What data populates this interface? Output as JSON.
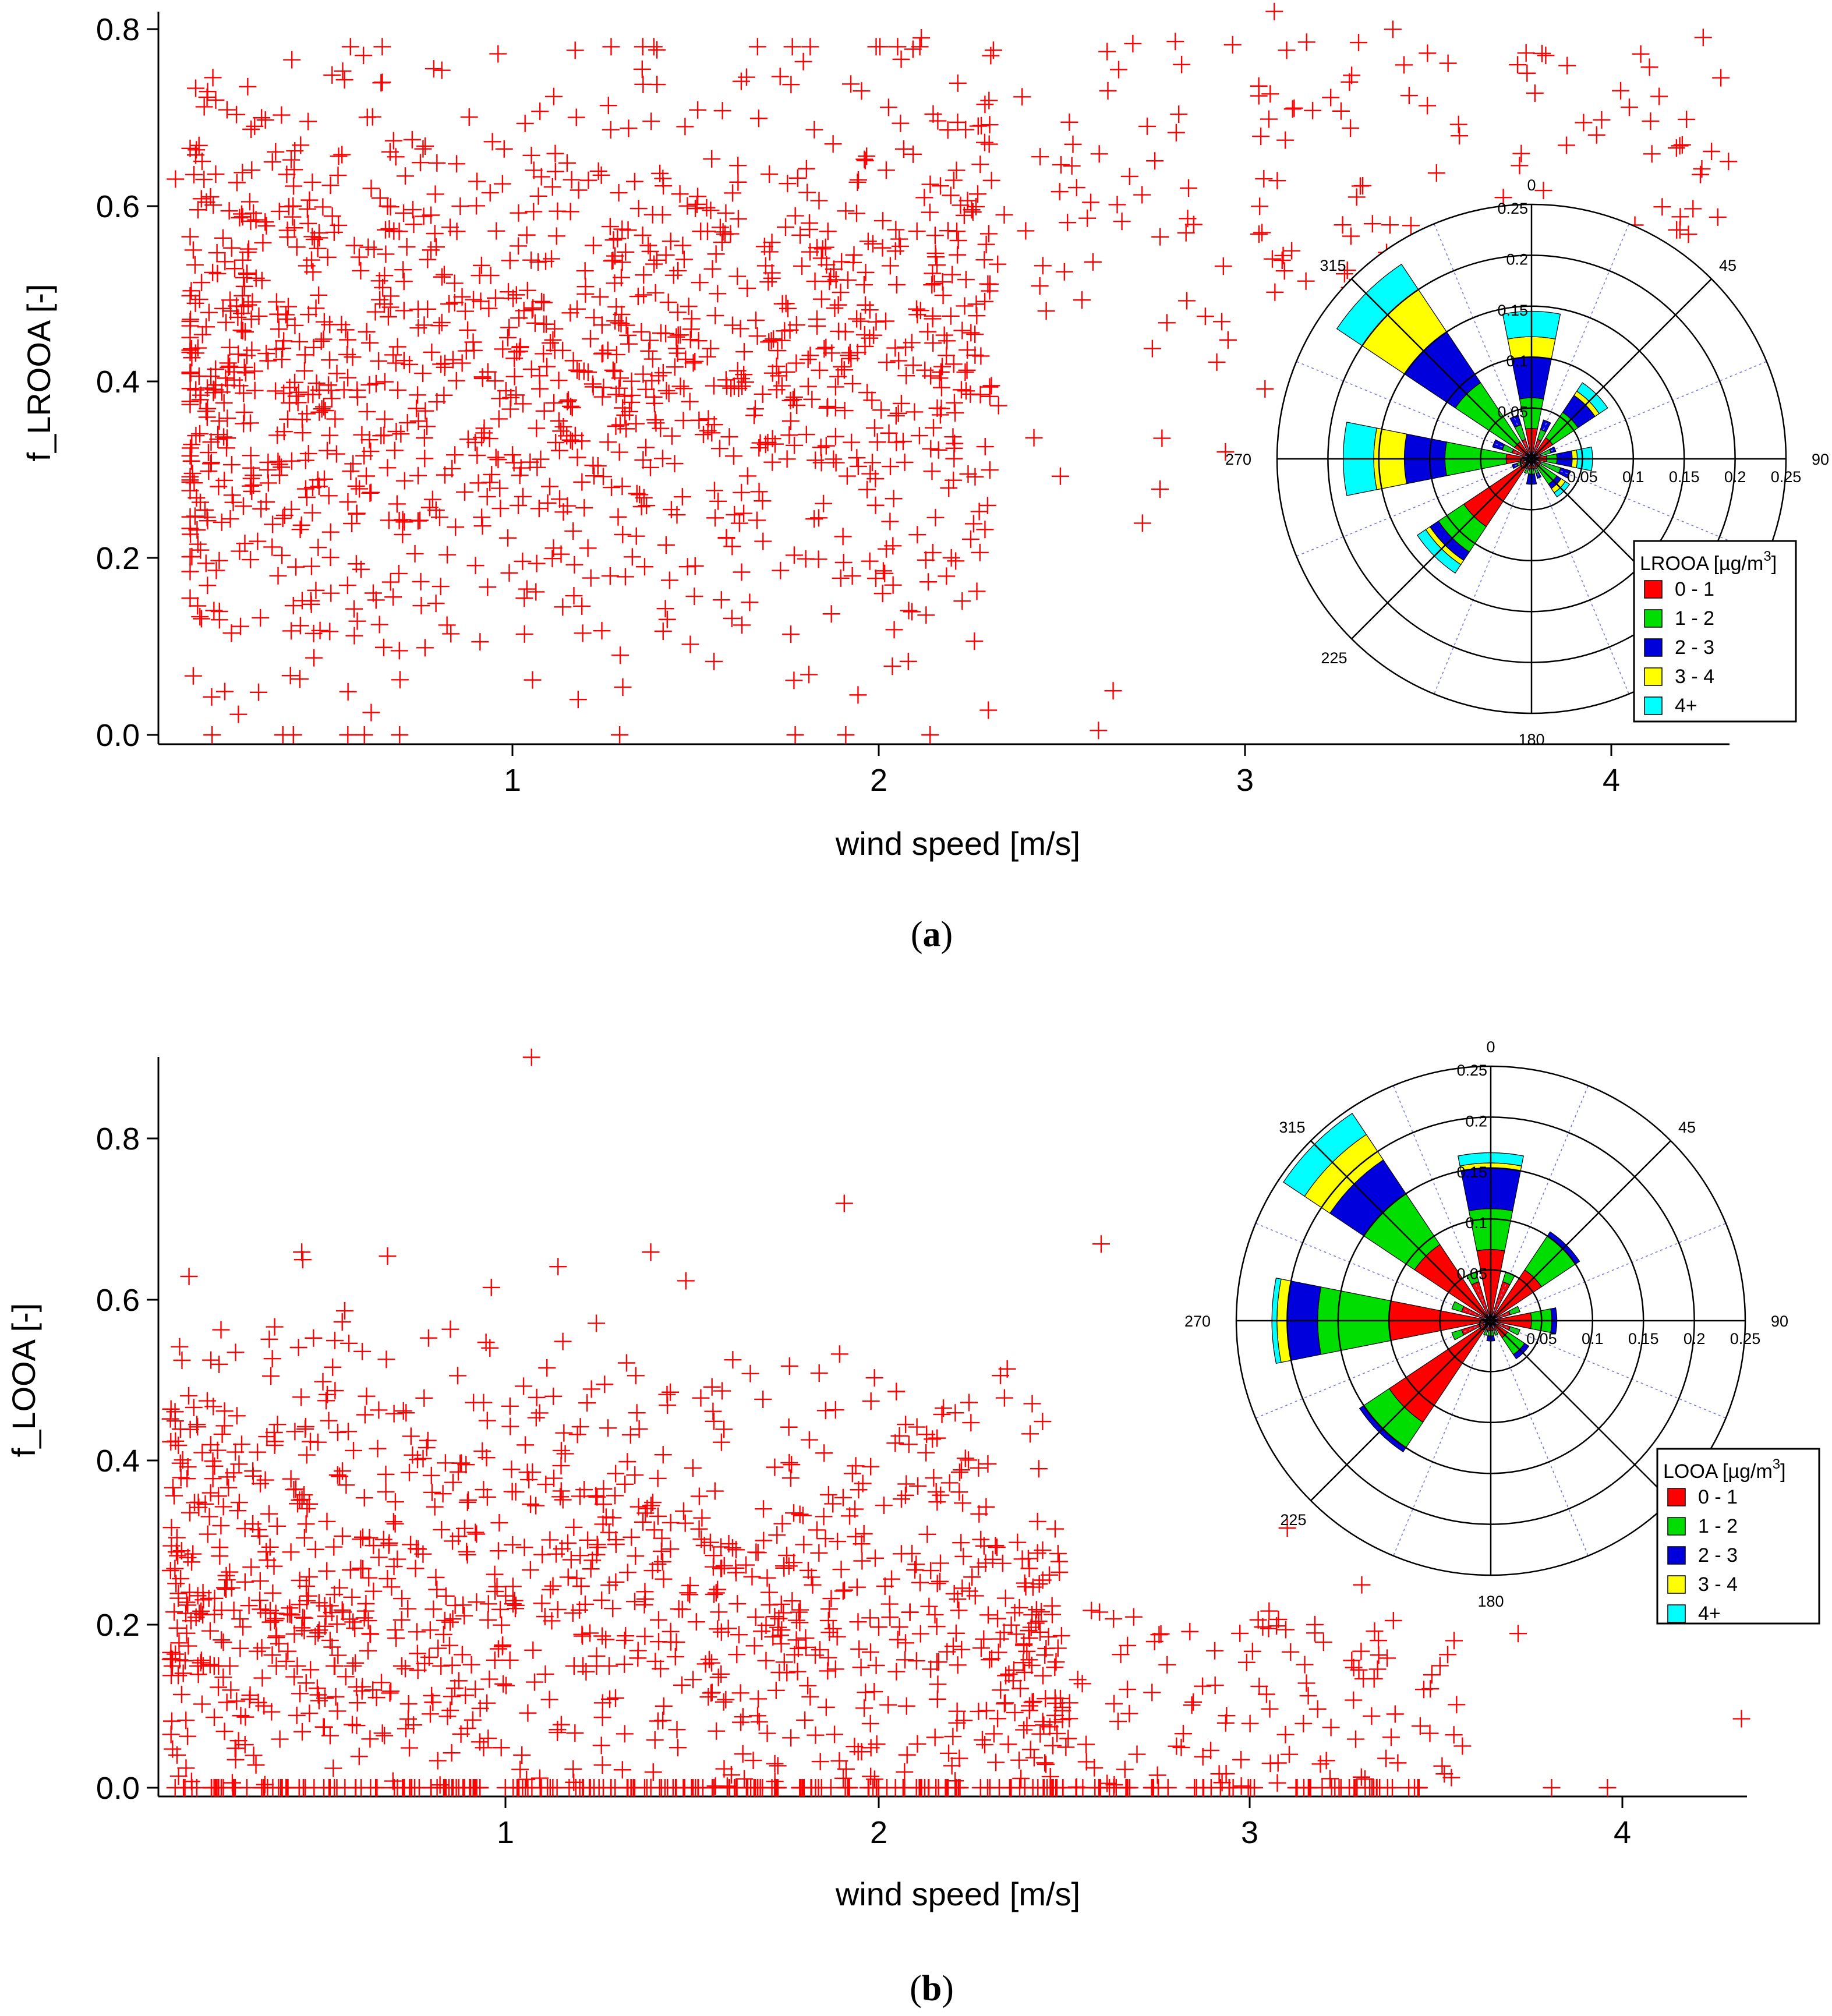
{
  "chart_data": [
    {
      "panel": "a",
      "panel_label": "a",
      "type": "scatter",
      "xlabel": "wind speed [m/s]",
      "ylabel": "f_LROOA [-]",
      "xlim": [
        0.1,
        4.35
      ],
      "ylim": [
        -0.01,
        0.82
      ],
      "xticks": [
        "1",
        "2",
        "3",
        "4"
      ],
      "yticks": [
        "0.0",
        "0.2",
        "0.4",
        "0.6",
        "0.8"
      ],
      "marker_color": "#ff0000",
      "marker": "+",
      "seed": 11,
      "n_points": 1500,
      "density_model": "broad cloud 0.1-2.3 m/s centred near 1 m/s; high-wind points 2.2-4.3 m/s clustered at f 0.5-0.8",
      "highlight_points": [
        {
          "x": 3.08,
          "y": 0.82
        },
        {
          "x": 4.32,
          "y": 0.65
        },
        {
          "x": 3.96,
          "y": 0.68
        },
        {
          "x": 2.6,
          "y": 0.005
        },
        {
          "x": 0.18,
          "y": 0.0
        },
        {
          "x": 0.2,
          "y": 0.14
        },
        {
          "x": 2.72,
          "y": 0.24
        },
        {
          "x": 2.64,
          "y": 0.05
        },
        {
          "x": 3.77,
          "y": 0.75
        },
        {
          "x": 1.91,
          "y": 0.0
        },
        {
          "x": 0.08,
          "y": 0.63
        }
      ],
      "windrose": {
        "legend_title": "LROOA [µg/m",
        "legend_sup": "3",
        "legend_title_end": "]",
        "classes": [
          "0 - 1",
          "1 - 2",
          "2 - 3",
          "3 - 4",
          "4+"
        ],
        "class_colors": [
          "#ff0000",
          "#00dd00",
          "#0000dd",
          "#ffff00",
          "#00ffff"
        ],
        "direction_labels": [
          "0",
          "45",
          "90",
          "180",
          "225",
          "270",
          "315"
        ],
        "radial_labels_vertical": [
          "0.25",
          "0.2",
          "0.15",
          "0.1",
          "0.05",
          "0"
        ],
        "radial_labels_horizontal": [
          "0.05",
          "0.1",
          "0.15",
          "0.2",
          "0.25"
        ],
        "rmax": 0.25,
        "sectors": [
          {
            "dir": 0,
            "values": [
              0.03,
              0.03,
              0.04,
              0.02,
              0.025
            ]
          },
          {
            "dir": 22.5,
            "values": [
              0.02,
              0.01,
              0.01,
              0.0,
              0.0
            ]
          },
          {
            "dir": 45,
            "values": [
              0.025,
              0.03,
              0.02,
              0.005,
              0.01
            ]
          },
          {
            "dir": 67.5,
            "values": [
              0.01,
              0.01,
              0.005,
              0.0,
              0.0
            ]
          },
          {
            "dir": 90,
            "values": [
              0.015,
              0.01,
              0.015,
              0.005,
              0.015
            ]
          },
          {
            "dir": 112.5,
            "values": [
              0.01,
              0.02,
              0.01,
              0.0,
              0.0
            ]
          },
          {
            "dir": 135,
            "values": [
              0.01,
              0.02,
              0.005,
              0.005,
              0.005
            ]
          },
          {
            "dir": 157.5,
            "values": [
              0.01,
              0.005,
              0.005,
              0.0,
              0.0
            ]
          },
          {
            "dir": 180,
            "values": [
              0.01,
              0.005,
              0.01,
              0.0,
              0.0
            ]
          },
          {
            "dir": 202.5,
            "values": [
              0.01,
              0.005,
              0.0,
              0.0,
              0.0
            ]
          },
          {
            "dir": 225,
            "values": [
              0.08,
              0.03,
              0.01,
              0.005,
              0.01
            ]
          },
          {
            "dir": 247.5,
            "values": [
              0.01,
              0.005,
              0.005,
              0.0,
              0.0
            ]
          },
          {
            "dir": 270,
            "values": [
              0.025,
              0.06,
              0.04,
              0.03,
              0.03
            ]
          },
          {
            "dir": 292.5,
            "values": [
              0.02,
              0.01,
              0.01,
              0.0,
              0.0
            ]
          },
          {
            "dir": 315,
            "values": [
              0.02,
              0.07,
              0.06,
              0.05,
              0.03
            ]
          },
          {
            "dir": 337.5,
            "values": [
              0.02,
              0.015,
              0.01,
              0.0,
              0.0
            ]
          }
        ]
      }
    },
    {
      "panel": "b",
      "panel_label": "b",
      "type": "scatter",
      "xlabel": "wind speed [m/s]",
      "ylabel": "f_LOOA [-]",
      "xlim": [
        0.02,
        4.32
      ],
      "ylim": [
        -0.01,
        0.9
      ],
      "xticks": [
        "1",
        "2",
        "3",
        "4"
      ],
      "yticks": [
        "0.0",
        "0.2",
        "0.4",
        "0.6",
        "0.8"
      ],
      "marker_color": "#ff0000",
      "marker": "+",
      "seed": 29,
      "n_points": 1500,
      "density_model": "dense cloud 0.1-2.5 m/s with f 0-0.6; sparse tail to 4.3 m/s near f 0-0.2; many points at f = 0",
      "highlight_points": [
        {
          "x": 1.07,
          "y": 0.9
        },
        {
          "x": 1.91,
          "y": 0.72
        },
        {
          "x": 4.32,
          "y": 0.085
        },
        {
          "x": 3.96,
          "y": 0.0
        },
        {
          "x": 3.72,
          "y": 0.19
        },
        {
          "x": 2.6,
          "y": 0.67
        },
        {
          "x": 0.15,
          "y": 0.63
        },
        {
          "x": 0.05,
          "y": 0.005
        },
        {
          "x": 3.1,
          "y": 0.32
        },
        {
          "x": 3.3,
          "y": 0.25
        },
        {
          "x": 3.81,
          "y": 0.0
        }
      ],
      "windrose": {
        "legend_title": "LOOA [µg/m",
        "legend_sup": "3",
        "legend_title_end": "]",
        "classes": [
          "0 - 1",
          "1 - 2",
          "2 - 3",
          "3 - 4",
          "4+"
        ],
        "class_colors": [
          "#ff0000",
          "#00dd00",
          "#0000dd",
          "#ffff00",
          "#00ffff"
        ],
        "direction_labels": [
          "0",
          "45",
          "90",
          "180",
          "225",
          "270",
          "315"
        ],
        "radial_labels_vertical": [
          "0.25",
          "0.2",
          "0.15",
          "0.1",
          "0.05",
          "0"
        ],
        "radial_labels_horizontal": [
          "0.05",
          "0.1",
          "0.15",
          "0.2",
          "0.25"
        ],
        "rmax": 0.25,
        "sectors": [
          {
            "dir": 0,
            "values": [
              0.07,
              0.04,
              0.04,
              0.005,
              0.01
            ]
          },
          {
            "dir": 22.5,
            "values": [
              0.04,
              0.01,
              0.0,
              0.0,
              0.0
            ]
          },
          {
            "dir": 45,
            "values": [
              0.06,
              0.04,
              0.005,
              0.0,
              0.0
            ]
          },
          {
            "dir": 67.5,
            "values": [
              0.02,
              0.01,
              0.0,
              0.0,
              0.0
            ]
          },
          {
            "dir": 90,
            "values": [
              0.04,
              0.02,
              0.005,
              0.0,
              0.0
            ]
          },
          {
            "dir": 112.5,
            "values": [
              0.02,
              0.01,
              0.0,
              0.0,
              0.0
            ]
          },
          {
            "dir": 135,
            "values": [
              0.02,
              0.02,
              0.005,
              0.0,
              0.0
            ]
          },
          {
            "dir": 157.5,
            "values": [
              0.01,
              0.005,
              0.0,
              0.0,
              0.0
            ]
          },
          {
            "dir": 180,
            "values": [
              0.01,
              0.005,
              0.005,
              0.0,
              0.0
            ]
          },
          {
            "dir": 202.5,
            "values": [
              0.01,
              0.005,
              0.0,
              0.0,
              0.0
            ]
          },
          {
            "dir": 225,
            "values": [
              0.12,
              0.03,
              0.005,
              0.0,
              0.0
            ]
          },
          {
            "dir": 247.5,
            "values": [
              0.03,
              0.01,
              0.0,
              0.0,
              0.0
            ]
          },
          {
            "dir": 270,
            "values": [
              0.1,
              0.07,
              0.03,
              0.01,
              0.005
            ]
          },
          {
            "dir": 292.5,
            "values": [
              0.03,
              0.01,
              0.0,
              0.0,
              0.0
            ]
          },
          {
            "dir": 315,
            "values": [
              0.09,
              0.06,
              0.04,
              0.03,
              0.025
            ]
          },
          {
            "dir": 337.5,
            "values": [
              0.04,
              0.01,
              0.0,
              0.0,
              0.0
            ]
          }
        ]
      }
    }
  ]
}
